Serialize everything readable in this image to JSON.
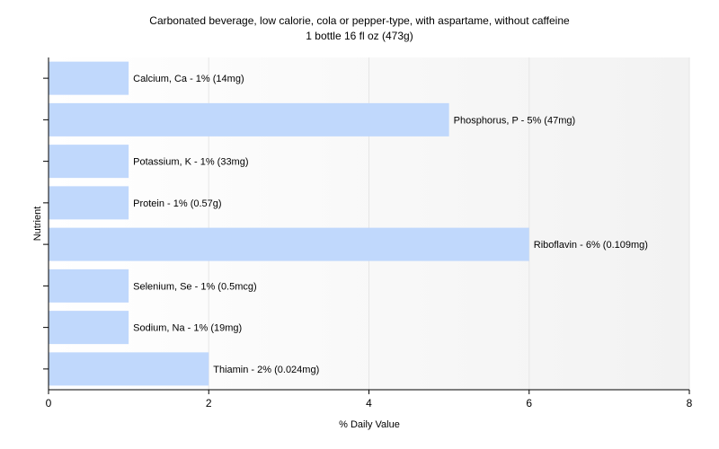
{
  "chart_data": {
    "type": "bar",
    "orientation": "horizontal",
    "title": "Carbonated beverage, low calorie, cola or pepper-type, with aspartame, without caffeine",
    "subtitle": "1 bottle 16 fl oz (473g)",
    "xlabel": "% Daily Value",
    "ylabel": "Nutrient",
    "xlim": [
      0,
      8
    ],
    "xticks": [
      0,
      2,
      4,
      6,
      8
    ],
    "grid": true,
    "bar_color": "#c0d8fc",
    "categories": [
      "Calcium, Ca",
      "Phosphorus, P",
      "Potassium, K",
      "Protein",
      "Riboflavin",
      "Selenium, Se",
      "Sodium, Na",
      "Thiamin"
    ],
    "values": [
      1,
      5,
      1,
      1,
      6,
      1,
      1,
      2
    ],
    "data_labels": [
      "Calcium, Ca - 1% (14mg)",
      "Phosphorus, P - 5% (47mg)",
      "Potassium, K - 1% (33mg)",
      "Protein - 1% (0.57g)",
      "Riboflavin - 6% (0.109mg)",
      "Selenium, Se - 1% (0.5mcg)",
      "Sodium, Na - 1% (19mg)",
      "Thiamin - 2% (0.024mg)"
    ]
  }
}
